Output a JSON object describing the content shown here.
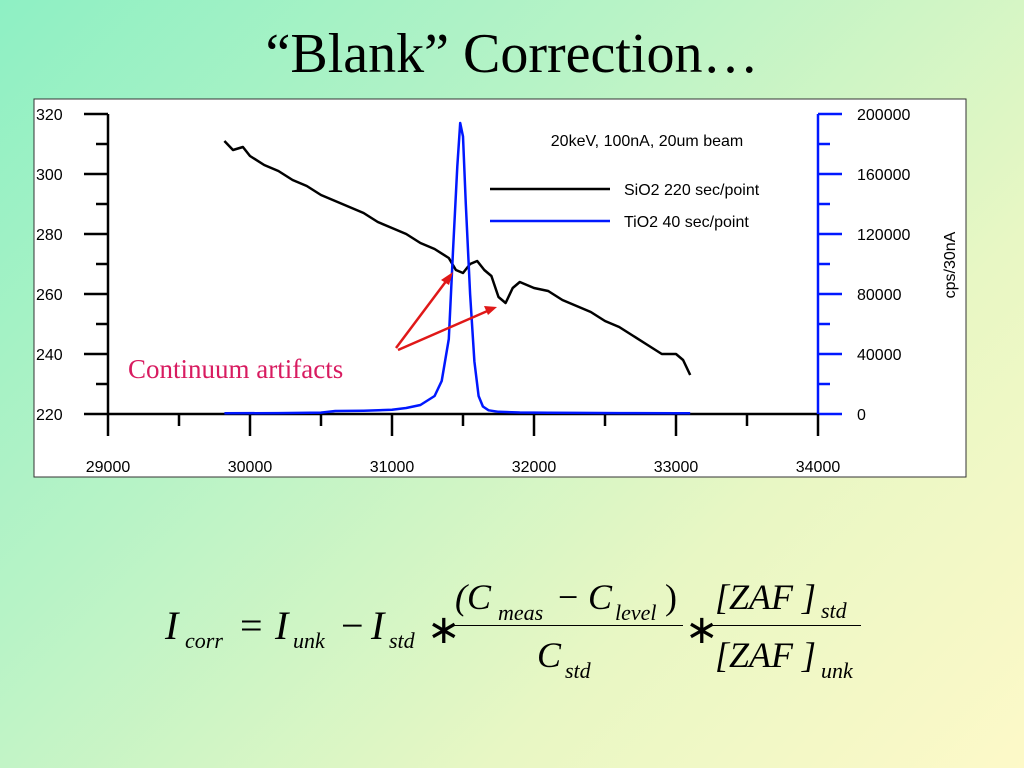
{
  "slide": {
    "title": "“Blank” Correction…"
  },
  "chart_data": {
    "type": "line",
    "title": "20keV, 100nA, 20um beam",
    "x_ticks": [
      "29000",
      "30000",
      "31000",
      "32000",
      "33000",
      "34000"
    ],
    "xlim": [
      29000,
      34000
    ],
    "y_left_ticks": [
      "220",
      "240",
      "260",
      "280",
      "300",
      "320"
    ],
    "ylim_left": [
      220,
      320
    ],
    "y_right_ticks": [
      "0",
      "40000",
      "80000",
      "120000",
      "160000",
      "200000"
    ],
    "ylim_right": [
      0,
      200000
    ],
    "ylabel_right": "cps/30nA",
    "legend_position": "top-right",
    "colors": {
      "sio2": "#000000",
      "tio2": "#0018ff",
      "annotation": "#d81b60",
      "arrow": "#e01818"
    },
    "series": [
      {
        "name": "SiO2 220 sec/point",
        "axis": "left",
        "color": "#000000",
        "x": [
          29820,
          29880,
          29950,
          30000,
          30100,
          30200,
          30300,
          30400,
          30500,
          30600,
          30700,
          30800,
          30900,
          31000,
          31100,
          31200,
          31300,
          31400,
          31450,
          31500,
          31550,
          31600,
          31650,
          31700,
          31750,
          31800,
          31850,
          31900,
          32000,
          32100,
          32200,
          32300,
          32400,
          32500,
          32600,
          32700,
          32800,
          32900,
          33000,
          33050,
          33100
        ],
        "y": [
          311,
          308,
          309,
          306,
          303,
          301,
          298,
          296,
          293,
          291,
          289,
          287,
          284,
          282,
          280,
          277,
          275,
          272,
          268,
          267,
          270,
          271,
          268,
          266,
          259,
          257,
          262,
          264,
          262,
          261,
          258,
          256,
          254,
          251,
          249,
          246,
          243,
          240,
          240,
          238,
          233
        ]
      },
      {
        "name": "TiO2 40 sec/point",
        "axis": "right",
        "color": "#0018ff",
        "x": [
          29820,
          30200,
          30500,
          30600,
          30800,
          31000,
          31100,
          31200,
          31300,
          31350,
          31400,
          31430,
          31460,
          31480,
          31500,
          31520,
          31550,
          31580,
          31610,
          31640,
          31680,
          31750,
          31900,
          32100,
          32300,
          32600,
          33000,
          33100
        ],
        "y": [
          500,
          600,
          900,
          2000,
          2200,
          2800,
          4000,
          6000,
          12000,
          22000,
          50000,
          110000,
          165000,
          194000,
          185000,
          140000,
          80000,
          35000,
          12000,
          5000,
          2500,
          1500,
          1000,
          800,
          700,
          600,
          500,
          500
        ]
      }
    ],
    "annotation": "Continuum artifacts"
  },
  "formula": {
    "lhs_I": "I",
    "lhs_sub": "corr",
    "eq": "=",
    "unk_I": "I",
    "unk_sub": "unk",
    "minus": "−",
    "std_I": "I",
    "std_sub": "std",
    "times1": "∗",
    "num_open": "(C",
    "num_meas_sub": "meas",
    "num_minus": "−",
    "num_C2": "C",
    "num_level_sub": "level",
    "num_close": ")",
    "den_C": "C",
    "den_sub": "std",
    "times2": "∗",
    "zaf_top": "[ZAF ]",
    "zaf_top_sub": "std",
    "zaf_bot": "[ZAF ]",
    "zaf_bot_sub": "unk"
  }
}
